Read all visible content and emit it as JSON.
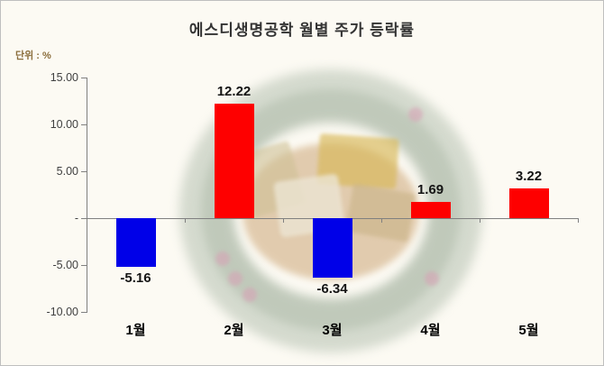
{
  "header": {
    "title": "에스디생명공학 월별 주가 등락률",
    "unit_label": "단위 : %"
  },
  "chart_data": {
    "type": "bar",
    "title": "에스디생명공학 월별 주가 등락률",
    "xlabel": "",
    "ylabel": "단위 : %",
    "categories": [
      "1월",
      "2월",
      "3월",
      "4월",
      "5월"
    ],
    "values": [
      -5.16,
      12.22,
      -6.34,
      1.69,
      3.22
    ],
    "data_labels": [
      "-5.16",
      "12.22",
      "-6.34",
      "1.69",
      "3.22"
    ],
    "ylim": [
      -10,
      15
    ],
    "yticks": [
      15,
      10,
      5,
      0,
      -5,
      -10
    ],
    "ytick_labels": [
      "15.00",
      "10.00",
      "5.00",
      "-",
      "-5.00",
      "-10.00"
    ],
    "positive_color": "#fe0000",
    "negative_color": "#0000e8",
    "grid": false,
    "legend": false
  }
}
